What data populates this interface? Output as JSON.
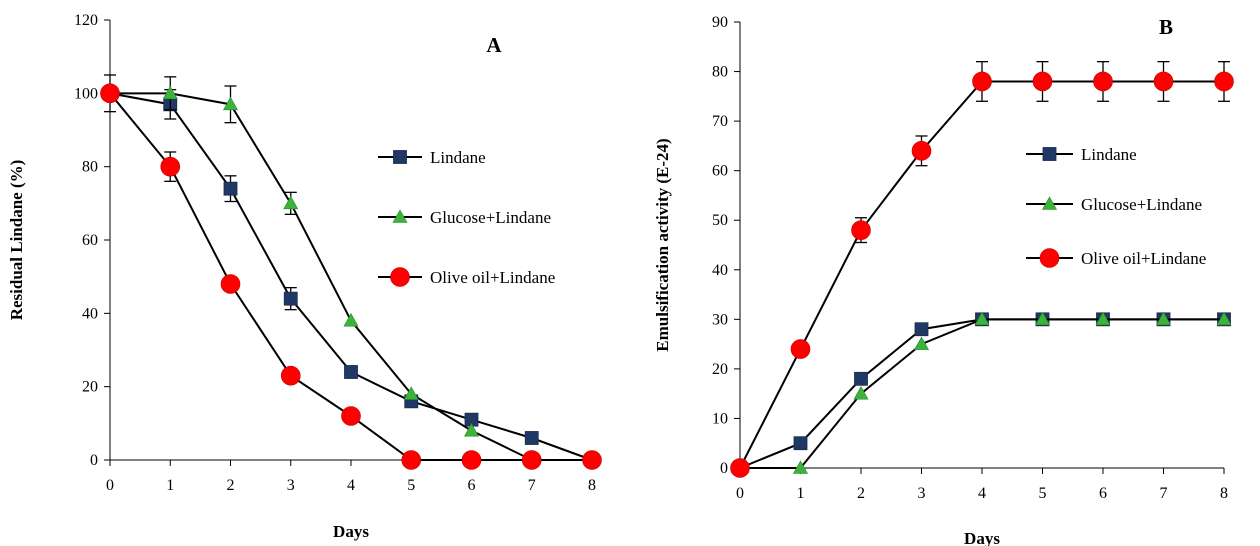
{
  "chart_data": [
    {
      "type": "line",
      "panel_label": "A",
      "xlabel": "Days",
      "ylabel": "Residual Lindane (%)",
      "x": [
        0,
        1,
        2,
        3,
        4,
        5,
        6,
        7,
        8
      ],
      "xlim": [
        0,
        8
      ],
      "ylim": [
        0,
        120
      ],
      "xticks": [
        "0",
        "1",
        "2",
        "3",
        "4",
        "5",
        "6",
        "7",
        "8"
      ],
      "yticks": [
        "0",
        "20",
        "40",
        "60",
        "80",
        "100",
        "120"
      ],
      "grid": false,
      "legend_position": "right",
      "series": [
        {
          "name": "Lindane",
          "marker": "square",
          "color": "#1f3864",
          "values": [
            100,
            97,
            74,
            44,
            24,
            16,
            11,
            6,
            0
          ],
          "errors": [
            5,
            4,
            3.5,
            3,
            0,
            0,
            0,
            0,
            0
          ]
        },
        {
          "name": "Glucose+Lindane",
          "marker": "triangle",
          "color": "#3cb43c",
          "values": [
            100,
            100,
            97,
            70,
            38,
            18,
            8,
            0,
            0
          ],
          "errors": [
            0,
            4.5,
            5,
            3,
            0,
            0,
            0,
            0,
            0
          ]
        },
        {
          "name": "Olive oil+Lindane",
          "marker": "circle",
          "color": "#ff0000",
          "values": [
            100,
            80,
            48,
            23,
            12,
            0,
            0,
            0,
            0
          ],
          "errors": [
            0,
            4,
            0,
            0,
            0,
            0,
            0,
            0,
            0
          ]
        }
      ]
    },
    {
      "type": "line",
      "panel_label": "B",
      "xlabel": "Days",
      "ylabel": "Emulsification activity (E-24)",
      "x": [
        0,
        1,
        2,
        3,
        4,
        5,
        6,
        7,
        8
      ],
      "xlim": [
        0,
        8
      ],
      "ylim": [
        0,
        90
      ],
      "xticks": [
        "0",
        "1",
        "2",
        "3",
        "4",
        "5",
        "6",
        "7",
        "8"
      ],
      "yticks": [
        "0",
        "10",
        "20",
        "30",
        "40",
        "50",
        "60",
        "70",
        "80",
        "90"
      ],
      "grid": false,
      "legend_position": "right",
      "series": [
        {
          "name": "Lindane",
          "marker": "square",
          "color": "#1f3864",
          "values": [
            0,
            5,
            18,
            28,
            30,
            30,
            30,
            30,
            30
          ],
          "errors": [
            0,
            0,
            0,
            0,
            0,
            0,
            0,
            0,
            0
          ]
        },
        {
          "name": "Glucose+Lindane",
          "marker": "triangle",
          "color": "#3cb43c",
          "values": [
            0,
            0,
            15,
            25,
            30,
            30,
            30,
            30,
            30
          ],
          "errors": [
            0,
            0,
            0,
            0,
            0,
            0,
            0,
            0,
            0
          ]
        },
        {
          "name": "Olive oil+Lindane",
          "marker": "circle",
          "color": "#ff0000",
          "values": [
            0,
            24,
            48,
            64,
            78,
            78,
            78,
            78,
            78
          ],
          "errors": [
            0,
            0,
            2.5,
            3,
            4,
            4,
            4,
            4,
            4
          ]
        }
      ]
    }
  ]
}
